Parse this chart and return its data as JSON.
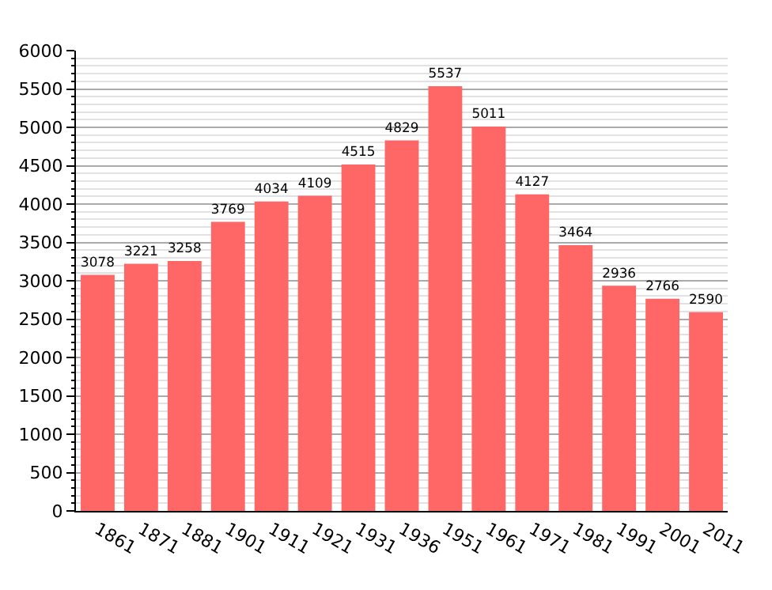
{
  "chart_data": {
    "type": "bar",
    "categories": [
      "1861",
      "1871",
      "1881",
      "1901",
      "1911",
      "1921",
      "1931",
      "1936",
      "1951",
      "1961",
      "1971",
      "1981",
      "1991",
      "2001",
      "2011"
    ],
    "values": [
      3078,
      3221,
      3258,
      3769,
      4034,
      4109,
      4515,
      4829,
      5537,
      5011,
      4127,
      3464,
      2936,
      2766,
      2590
    ],
    "color": "#ff6666",
    "ylim": [
      0,
      6000
    ],
    "yticks": [
      0,
      500,
      1000,
      1500,
      2000,
      2500,
      3000,
      3500,
      4000,
      4500,
      5000,
      5500,
      6000
    ],
    "grid": "y",
    "data_labels": true
  }
}
